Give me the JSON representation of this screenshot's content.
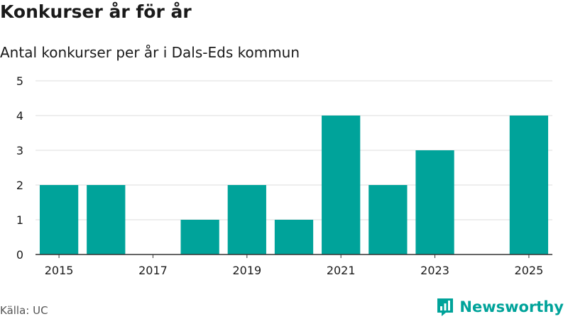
{
  "title": "Konkurser år för år",
  "subtitle": "Antal konkurser per år i Dals-Eds kommun",
  "source": "Källa: UC",
  "brand": {
    "name": "Newsworthy"
  },
  "colors": {
    "bar": "#00a39a",
    "grid": "#dddddd",
    "axis": "#333333",
    "brand": "#00a39a"
  },
  "chart_data": {
    "type": "bar",
    "title": "Konkurser år för år",
    "subtitle": "Antal konkurser per år i Dals-Eds kommun",
    "xlabel": "",
    "ylabel": "",
    "categories": [
      "2015",
      "2016",
      "2017",
      "2018",
      "2019",
      "2020",
      "2021",
      "2022",
      "2023",
      "2024",
      "2025"
    ],
    "values": [
      2,
      2,
      0,
      1,
      2,
      1,
      4,
      2,
      3,
      0,
      4
    ],
    "x_tick_labels": [
      "2015",
      "2017",
      "2019",
      "2021",
      "2023",
      "2025"
    ],
    "y_ticks": [
      0,
      1,
      2,
      3,
      4,
      5
    ],
    "ylim": [
      0,
      5
    ],
    "grid": true
  }
}
